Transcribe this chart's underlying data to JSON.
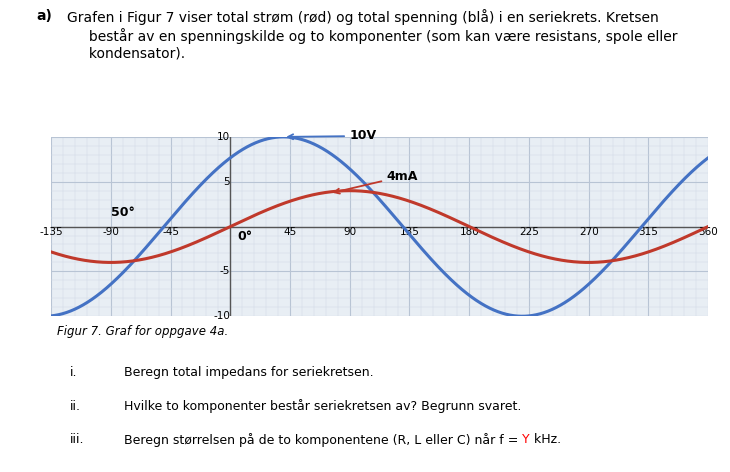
{
  "voltage_amplitude": 10,
  "current_amplitude": 4,
  "voltage_phase_deg": 50,
  "current_phase_deg": 0,
  "x_min": -135,
  "x_max": 360,
  "y_min": -10,
  "y_max": 10,
  "x_ticks": [
    -135,
    -90,
    -45,
    45,
    90,
    135,
    180,
    225,
    270,
    315,
    360
  ],
  "y_ticks": [
    -10,
    -5,
    5,
    10
  ],
  "voltage_color": "#4472c4",
  "current_color": "#c0392b",
  "grid_major_color": "#b8c4d4",
  "grid_minor_color": "#d0d8e4",
  "bg_color": "#e8eef4",
  "label_10V": "10V",
  "label_4mA": "4mA",
  "label_50deg": "50°",
  "label_0deg": "0°",
  "header_a": "a)",
  "header_text": "Grafen i Figur 7 viser total strøm (rød) og total spenning (blå) i en seriekrets. Kretsen\n     består av en spenningskilde og to komponenter (som kan være resistans, spole eller\n     kondensator).",
  "figcaption": "Figur 7. Graf for oppgave 4a.",
  "body_i": "Beregn total impedans for seriekretsen.",
  "body_ii": "Hvilke to komponenter består seriekretsen av? Begrunn svaret.",
  "body_iii_before": "Beregn størrelsen på de to komponentene (R, L eller C) når f = ",
  "body_iii_Y": "Y",
  "body_iii_after": " kHz."
}
